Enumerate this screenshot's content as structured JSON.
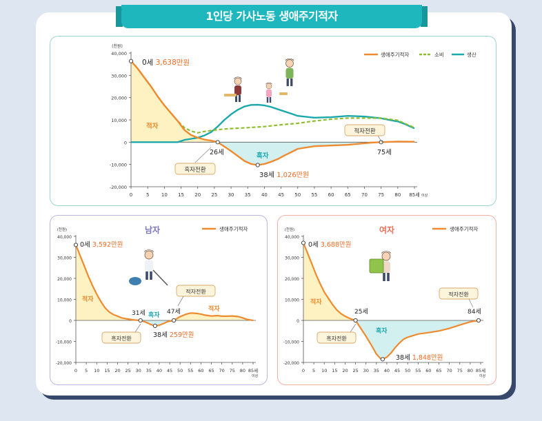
{
  "title": "1인당 가사노동 생애주기적자",
  "colors": {
    "deficit": "#ef8a2f",
    "consumption": "#8dbf2c",
    "production": "#1aa8ad",
    "deficit_fill": "#fff2c2",
    "surplus_fill": "#d3f0f1",
    "annotation": "#ef6a22",
    "male_title": "#7a75bd",
    "female_title": "#ee6e55",
    "banner": "#1eb7bd"
  },
  "chart_data": [
    {
      "type": "line",
      "unit_label": "(천원)",
      "x_ticks": [
        "0",
        "5",
        "10",
        "15",
        "20",
        "25",
        "30",
        "35",
        "40",
        "45",
        "50",
        "55",
        "60",
        "65",
        "70",
        "75",
        "80",
        "85세"
      ],
      "x_extra_label": "이상",
      "y_ticks": [
        "40,000",
        "30,000",
        "20,000",
        "10,000",
        "0",
        "-10,000",
        "-20,000"
      ],
      "ylim": [
        -20000,
        40000
      ],
      "xlim": [
        0,
        85
      ],
      "legend": [
        "생애주기적자",
        "소비",
        "생산"
      ],
      "series": [
        {
          "name": "생애주기적자",
          "x": [
            0,
            2,
            4,
            6,
            8,
            10,
            12,
            14,
            16,
            18,
            20,
            22,
            24,
            26,
            28,
            30,
            32,
            34,
            36,
            38,
            40,
            42,
            44,
            46,
            48,
            50,
            55,
            60,
            65,
            70,
            72,
            75,
            80,
            85
          ],
          "y": [
            36380,
            33000,
            29000,
            25000,
            20500,
            16500,
            13000,
            9500,
            5500,
            3200,
            2000,
            1200,
            700,
            0,
            -2000,
            -4000,
            -6200,
            -8400,
            -9800,
            -10260,
            -9800,
            -8800,
            -7600,
            -6000,
            -4500,
            -3000,
            -1800,
            -1500,
            -1200,
            -500,
            -200,
            0,
            300,
            200
          ]
        },
        {
          "name": "소비",
          "x": [
            0,
            2,
            4,
            6,
            8,
            10,
            12,
            14,
            16,
            18,
            20,
            22,
            24,
            26,
            28,
            30,
            35,
            40,
            45,
            50,
            55,
            60,
            65,
            70,
            75,
            78,
            80,
            82,
            85
          ],
          "y": [
            36380,
            33000,
            29000,
            25000,
            20500,
            16500,
            13000,
            9500,
            6500,
            5000,
            4200,
            4800,
            5200,
            5600,
            5900,
            6100,
            6500,
            7000,
            7800,
            8500,
            9500,
            10300,
            10800,
            10800,
            10800,
            10200,
            9800,
            8500,
            6500
          ]
        },
        {
          "name": "생산",
          "x": [
            0,
            10,
            14,
            16,
            18,
            20,
            22,
            24,
            26,
            28,
            30,
            32,
            34,
            36,
            38,
            40,
            42,
            44,
            46,
            48,
            50,
            55,
            60,
            65,
            70,
            75,
            78,
            80,
            82,
            85
          ],
          "y": [
            0,
            0,
            0,
            1000,
            1500,
            2000,
            3000,
            4500,
            7000,
            10000,
            12500,
            14500,
            16000,
            16700,
            16800,
            16500,
            15800,
            14800,
            13800,
            12800,
            11800,
            11000,
            11200,
            11800,
            11500,
            10700,
            9800,
            9300,
            8200,
            6200
          ]
        }
      ],
      "annotations": {
        "start_age": "0세",
        "start_value": "3,638만원",
        "deficit_label": "적자",
        "surplus_label": "흑자",
        "surplus_turn": "흑자전환",
        "surplus_turn_age": "26세",
        "min_age": "38세",
        "min_value": "1,026만원",
        "deficit_turn": "적자전환",
        "deficit_turn_age": "75세"
      }
    },
    {
      "type": "line",
      "title": "남자",
      "unit_label": "(천원)",
      "x_ticks": [
        "0",
        "5",
        "10",
        "15",
        "20",
        "25",
        "30",
        "35",
        "40",
        "45",
        "50",
        "55",
        "60",
        "65",
        "70",
        "75",
        "80",
        "85세"
      ],
      "x_extra_label": "이상",
      "y_ticks": [
        "40,000",
        "30,000",
        "20,000",
        "10,000",
        "0",
        "-10,000",
        "-20,000"
      ],
      "ylim": [
        -20000,
        40000
      ],
      "xlim": [
        0,
        85
      ],
      "legend": [
        "생애주기적자"
      ],
      "series": [
        {
          "name": "생애주기적자",
          "x": [
            0,
            2,
            4,
            6,
            8,
            10,
            12,
            14,
            16,
            18,
            20,
            22,
            24,
            26,
            28,
            31,
            34,
            36,
            38,
            40,
            42,
            44,
            47,
            50,
            53,
            55,
            58,
            60,
            62,
            65,
            68,
            70,
            72,
            75,
            78,
            80,
            82,
            85
          ],
          "y": [
            35920,
            31000,
            26000,
            21000,
            16500,
            12500,
            9000,
            6000,
            4000,
            2800,
            2000,
            1200,
            800,
            500,
            200,
            0,
            -1000,
            -2000,
            -2590,
            -2300,
            -1500,
            -600,
            0,
            1800,
            3000,
            3500,
            3300,
            3000,
            2500,
            2100,
            2300,
            2000,
            2000,
            2100,
            1800,
            1200,
            500,
            0
          ]
        }
      ],
      "annotations": {
        "start_age": "0세",
        "start_value": "3,592만원",
        "deficit_label_1": "적자",
        "deficit_label_2": "적자",
        "surplus_label": "흑자",
        "surplus_turn": "흑자전환",
        "surplus_turn_age": "31세",
        "min_age": "38세",
        "min_value": "259만원",
        "deficit_turn": "적자전환",
        "deficit_turn_age": "47세"
      }
    },
    {
      "type": "line",
      "title": "여자",
      "unit_label": "(천원)",
      "x_ticks": [
        "0",
        "5",
        "10",
        "15",
        "20",
        "25",
        "30",
        "35",
        "40",
        "45",
        "50",
        "55",
        "60",
        "65",
        "70",
        "75",
        "80",
        "85세"
      ],
      "x_extra_label": "이상",
      "y_ticks": [
        "40,000",
        "30,000",
        "20,000",
        "10,000",
        "0",
        "-10,000",
        "-20,000"
      ],
      "ylim": [
        -20000,
        40000
      ],
      "xlim": [
        0,
        85
      ],
      "legend": [
        "생애주기적자"
      ],
      "series": [
        {
          "name": "생애주기적자",
          "x": [
            0,
            2,
            4,
            6,
            8,
            10,
            12,
            14,
            16,
            18,
            20,
            22,
            24,
            25,
            27,
            30,
            33,
            35,
            37,
            38,
            40,
            42,
            44,
            46,
            48,
            50,
            55,
            60,
            65,
            70,
            75,
            80,
            84,
            85
          ],
          "y": [
            36880,
            32000,
            27000,
            22000,
            17500,
            13500,
            10500,
            7500,
            5000,
            3200,
            2000,
            1000,
            300,
            0,
            -3000,
            -7500,
            -12500,
            -16000,
            -18200,
            -18480,
            -17500,
            -15500,
            -13000,
            -10800,
            -9000,
            -8000,
            -6500,
            -5800,
            -5000,
            -3800,
            -2200,
            -700,
            0,
            0
          ]
        }
      ],
      "annotations": {
        "start_age": "0세",
        "start_value": "3,688만원",
        "deficit_label": "적자",
        "surplus_label": "흑자",
        "surplus_turn": "흑자전환",
        "surplus_turn_age": "25세",
        "min_age": "38세",
        "min_value": "1,848만원",
        "deficit_turn": "적자전환",
        "deficit_turn_age": "84세"
      }
    }
  ]
}
